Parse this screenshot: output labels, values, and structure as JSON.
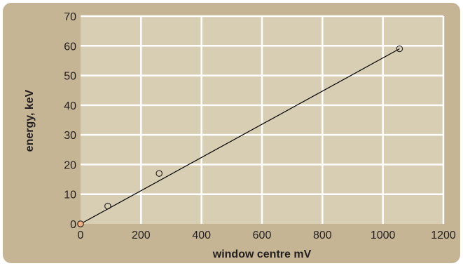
{
  "colors": {
    "frame": "#c5b595",
    "plot_area": "#d8ceb4",
    "grid": "#ffffff",
    "line": "#000000",
    "marker_stroke": "#231f20",
    "origin_marker_fill": "#f4b183"
  },
  "chart_data": {
    "type": "scatter",
    "title": "",
    "xlabel": "window centre  mV",
    "ylabel": "energy, keV",
    "xlim": [
      0,
      1200
    ],
    "ylim": [
      0,
      70
    ],
    "x_ticks": [
      "0",
      "200",
      "400",
      "600",
      "800",
      "1000",
      "1200"
    ],
    "y_ticks": [
      "0",
      "10",
      "20",
      "30",
      "40",
      "50",
      "60",
      "70"
    ],
    "grid": true,
    "points": [
      {
        "x": 0,
        "y": 0
      },
      {
        "x": 90,
        "y": 6
      },
      {
        "x": 260,
        "y": 17
      },
      {
        "x": 1055,
        "y": 59
      }
    ],
    "fit_line": [
      {
        "x": 0,
        "y": 0
      },
      {
        "x": 1055,
        "y": 59
      }
    ]
  }
}
